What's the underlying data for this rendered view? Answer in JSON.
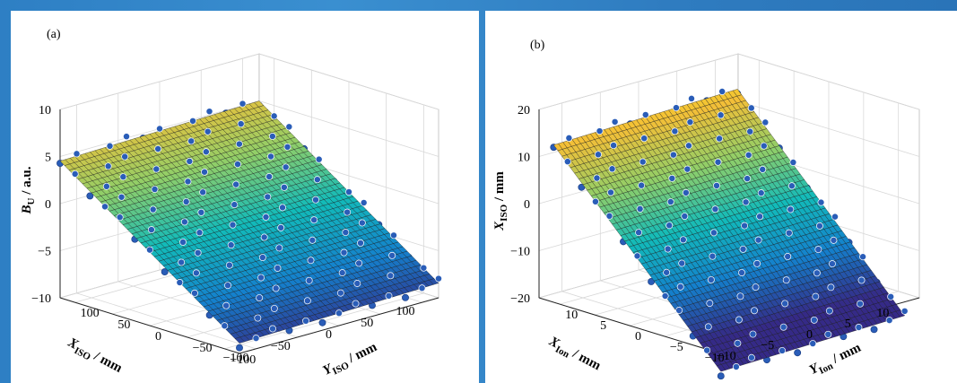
{
  "chart_data": [
    {
      "type": "surface",
      "panel_label": "(a)",
      "zlabel": "B",
      "zlabel_sub": "U",
      "zlabel_tail": " / a.u.",
      "xlabel": "X",
      "xlabel_sub": "ISO",
      "xlabel_tail": " / mm",
      "ylabel": "Y",
      "ylabel_sub": "ISO",
      "ylabel_tail": " / mm",
      "xlim": [
        -120,
        120
      ],
      "ylim": [
        -120,
        120
      ],
      "zlim": [
        -10,
        10
      ],
      "xticks": [
        100,
        50,
        0,
        -50,
        -100
      ],
      "xtick_labels": [
        "100",
        "50",
        "0",
        "−50",
        "−100"
      ],
      "yticks": [
        100,
        50,
        0,
        -50,
        -100
      ],
      "ytick_labels": [
        "100",
        "50",
        "0",
        "−50",
        "−100"
      ],
      "zticks": [
        10,
        5,
        0,
        -5,
        -10
      ],
      "ztick_labels": [
        "10",
        "5",
        "0",
        "−5",
        "−10"
      ],
      "surface": {
        "z_at_x_max_y_max": 5,
        "z_slope_x": 0.002,
        "z_slope_y": 0.056
      },
      "points": {
        "count_x": 13,
        "count_y": 13,
        "spacing": 20
      },
      "colormap": "parula",
      "point_color": "#2a5db8",
      "grid": true
    },
    {
      "type": "surface",
      "panel_label": "(b)",
      "zlabel": "X",
      "zlabel_sub": "ISO",
      "zlabel_tail": " / mm",
      "xlabel": "X",
      "xlabel_sub": "Ion",
      "xlabel_tail": " / mm",
      "ylabel": "Y",
      "ylabel_sub": "Ion",
      "ylabel_tail": " / mm",
      "xlim": [
        -13,
        13
      ],
      "ylim": [
        -13,
        13
      ],
      "zlim": [
        -20,
        20
      ],
      "xticks": [
        10,
        5,
        0,
        -5,
        -10
      ],
      "xtick_labels": [
        "10",
        "5",
        "0",
        "−5",
        "−10"
      ],
      "yticks": [
        10,
        5,
        0,
        -5,
        -10
      ],
      "ytick_labels": [
        "10",
        "5",
        "0",
        "−5",
        "−10"
      ],
      "zticks": [
        20,
        10,
        0,
        -10,
        -20
      ],
      "ztick_labels": [
        "20",
        "10",
        "0",
        "−10",
        "−20"
      ],
      "surface": {
        "z_at_x_max_y_max": 15,
        "z_slope_x": 0.04,
        "z_slope_y": 1.55
      },
      "points": {
        "count_x": 13,
        "count_y": 13,
        "spacing": 2
      },
      "colormap": "parula",
      "point_color": "#2a5db8",
      "grid": true
    }
  ]
}
